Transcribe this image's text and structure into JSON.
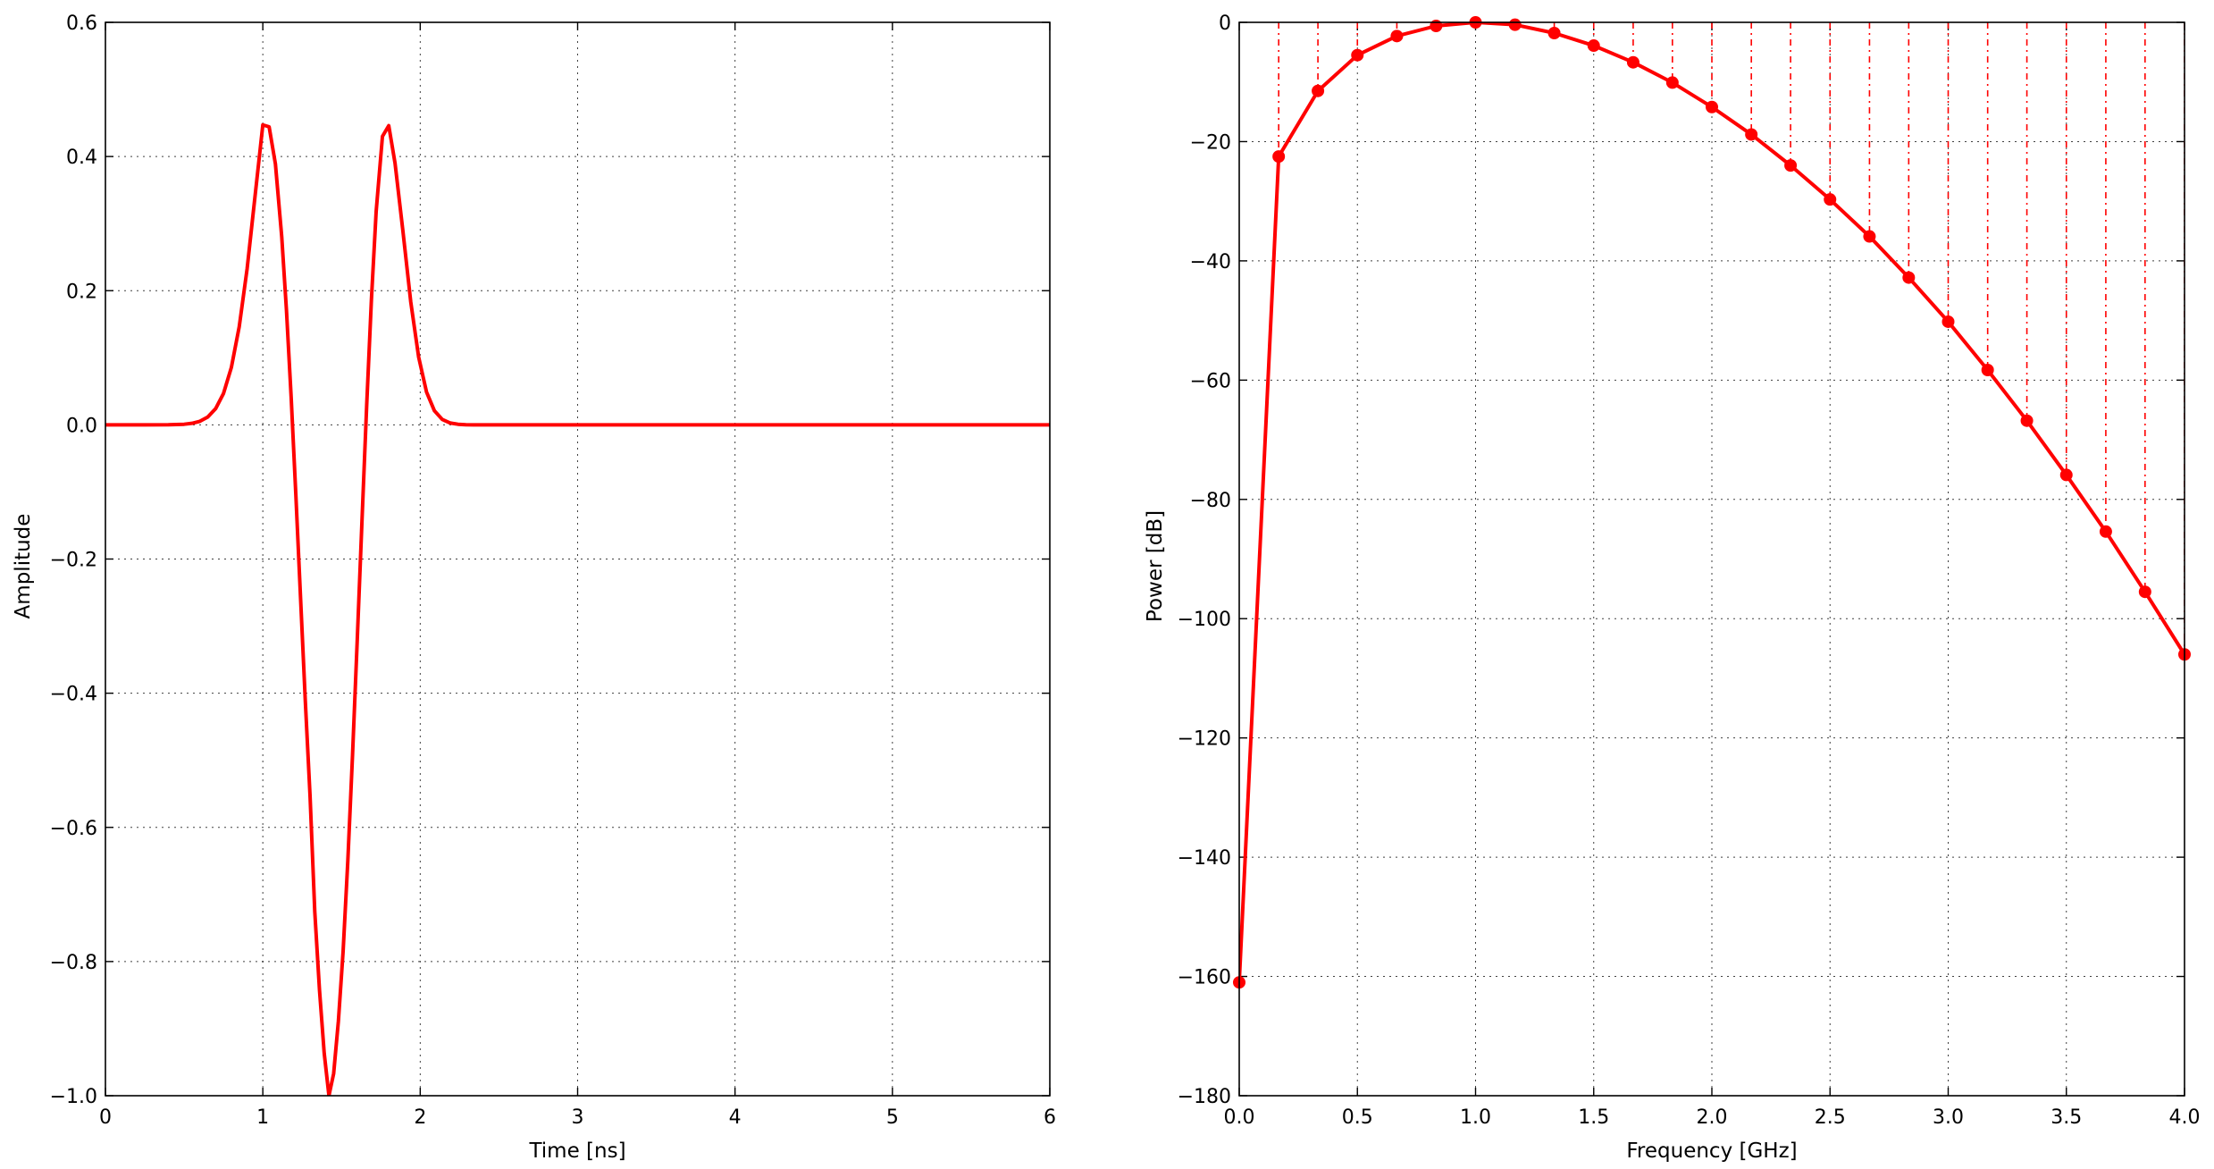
{
  "chart_data": [
    {
      "type": "line",
      "xlabel": "Time [ns]",
      "ylabel": "Amplitude",
      "xlim": [
        0,
        6
      ],
      "ylim": [
        -1.0,
        0.6
      ],
      "xticks": [
        0,
        1,
        2,
        3,
        4,
        5,
        6
      ],
      "xtick_labels": [
        "0",
        "1",
        "2",
        "3",
        "4",
        "5",
        "6"
      ],
      "yticks": [
        -1.0,
        -0.8,
        -0.6,
        -0.4,
        -0.2,
        0.0,
        0.2,
        0.4,
        0.6
      ],
      "ytick_labels": [
        "−1.0",
        "−0.8",
        "−0.6",
        "−0.4",
        "−0.2",
        "0.0",
        "0.2",
        "0.4",
        "0.6"
      ],
      "grid": true,
      "color": "#ff0000",
      "series": [
        {
          "x": [
            0,
            0.25,
            0.4,
            0.5,
            0.55,
            0.6,
            0.65,
            0.7,
            0.75,
            0.8,
            0.85,
            0.9,
            0.95,
            1.0,
            1.04,
            1.08,
            1.12,
            1.15,
            1.18,
            1.21,
            1.24,
            1.27,
            1.3,
            1.33,
            1.36,
            1.39,
            1.42,
            1.45,
            1.48,
            1.51,
            1.54,
            1.57,
            1.6,
            1.63,
            1.66,
            1.69,
            1.72,
            1.76,
            1.8,
            1.84,
            1.89,
            1.94,
            1.99,
            2.04,
            2.09,
            2.14,
            2.19,
            2.24,
            2.29,
            2.34,
            2.45,
            2.6,
            3.0,
            4.0,
            5.0,
            6.0
          ],
          "y": [
            0,
            0,
            0.0001,
            0.0009,
            0.0023,
            0.0053,
            0.0116,
            0.0241,
            0.0467,
            0.0855,
            0.1462,
            0.2323,
            0.3397,
            0.4471,
            0.4443,
            0.3889,
            0.2807,
            0.1715,
            0.0411,
            -0.1054,
            -0.2596,
            -0.4121,
            -0.5529,
            -0.7255,
            -0.8424,
            -0.9367,
            -1.0,
            -0.967,
            -0.889,
            -0.785,
            -0.65,
            -0.492,
            -0.32,
            -0.143,
            0.03,
            0.187,
            0.318,
            0.43,
            0.446,
            0.39,
            0.289,
            0.183,
            0.101,
            0.049,
            0.0211,
            0.0081,
            0.0028,
            0.0009,
            0.0002,
            0,
            0,
            0,
            0,
            0,
            0,
            0
          ]
        }
      ]
    },
    {
      "type": "line",
      "xlabel": "Frequency [GHz]",
      "ylabel": "Power [dB]",
      "xlim": [
        0.0,
        4.0
      ],
      "ylim": [
        -180,
        0
      ],
      "xticks": [
        0.0,
        0.5,
        1.0,
        1.5,
        2.0,
        2.5,
        3.0,
        3.5,
        4.0
      ],
      "xtick_labels": [
        "0.0",
        "0.5",
        "1.0",
        "1.5",
        "2.0",
        "2.5",
        "3.0",
        "3.5",
        "4.0"
      ],
      "yticks": [
        -180,
        -160,
        -140,
        -120,
        -100,
        -80,
        -60,
        -40,
        -20,
        0
      ],
      "ytick_labels": [
        "−180",
        "−160",
        "−140",
        "−120",
        "−100",
        "−80",
        "−60",
        "−40",
        "−20",
        "0"
      ],
      "grid": true,
      "color": "#ff0000",
      "markers": true,
      "stems": true,
      "series": [
        {
          "x": [
            0.0,
            0.167,
            0.333,
            0.5,
            0.667,
            0.833,
            1.0,
            1.167,
            1.333,
            1.5,
            1.667,
            1.833,
            2.0,
            2.167,
            2.333,
            2.5,
            2.667,
            2.833,
            3.0,
            3.167,
            3.333,
            3.5,
            3.667,
            3.833,
            4.0
          ],
          "y": [
            -161,
            -22.5,
            -11.5,
            -5.5,
            -2.3,
            -0.6,
            0,
            -0.4,
            -1.8,
            -3.9,
            -6.7,
            -10.1,
            -14.2,
            -18.8,
            -24.0,
            -29.7,
            -35.9,
            -42.8,
            -50.2,
            -58.3,
            -66.8,
            -75.9,
            -85.4,
            -95.5,
            -106.0
          ]
        }
      ]
    }
  ]
}
